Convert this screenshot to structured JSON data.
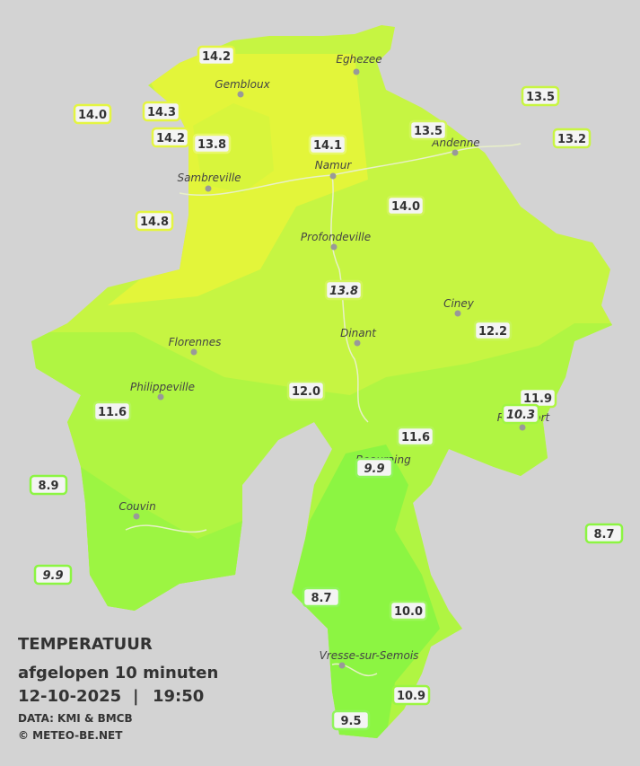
{
  "title": "TEMPERATUUR",
  "subtitle": "afgelopen 10 minuten",
  "timestamp": {
    "date": "12-10-2025",
    "separator": "|",
    "time": "19:50"
  },
  "source": "DATA: KMI & BMCB",
  "copyright": "© METEO-BE.NET",
  "towns": [
    "Eghezee",
    "Gembloux",
    "Andenne",
    "Namur",
    "Sambreville",
    "Profondeville",
    "Ciney",
    "Dinant",
    "Florennes",
    "Philippeville",
    "Rochefort",
    "Beauraing",
    "Couvin",
    "Vresse-sur-Semois"
  ],
  "stations": [
    {
      "label": "14.2",
      "italic": false,
      "border": "#e4f542"
    },
    {
      "label": "14.0",
      "italic": false,
      "border": "#e4f542"
    },
    {
      "label": "14.3",
      "italic": false,
      "border": "#e4f542"
    },
    {
      "label": "14.2",
      "italic": false,
      "border": "#e4f542"
    },
    {
      "label": "13.8",
      "italic": false,
      "border": "#e8f86a"
    },
    {
      "label": "14.1",
      "italic": false,
      "border": "#e8f86a"
    },
    {
      "label": "13.5",
      "italic": false,
      "border": "#d2f55a"
    },
    {
      "label": "13.5",
      "italic": false,
      "border": "#c8f542"
    },
    {
      "label": "13.2",
      "italic": false,
      "border": "#c8f542"
    },
    {
      "label": "14.8",
      "italic": false,
      "border": "#e4f542"
    },
    {
      "label": "14.0",
      "italic": false,
      "border": "#d2f55a"
    },
    {
      "label": "13.8",
      "italic": true,
      "border": "#d2f55a"
    },
    {
      "label": "12.2",
      "italic": false,
      "border": "#c8f55a"
    },
    {
      "label": "12.0",
      "italic": false,
      "border": "#c8f55a"
    },
    {
      "label": "11.6",
      "italic": false,
      "border": "#b5f55a"
    },
    {
      "label": "11.9",
      "italic": false,
      "border": "#b0f542"
    },
    {
      "label": "10.3",
      "italic": true,
      "border": "#a0f542"
    },
    {
      "label": "11.6",
      "italic": false,
      "border": "#b5f55a"
    },
    {
      "label": "9.9",
      "italic": true,
      "border": "#90f55a"
    },
    {
      "label": "8.9",
      "italic": false,
      "border": "#8cf542"
    },
    {
      "label": "8.7",
      "italic": false,
      "border": "#8cf542"
    },
    {
      "label": "9.9",
      "italic": true,
      "border": "#8cf542"
    },
    {
      "label": "8.7",
      "italic": false,
      "border": "#90f55a"
    },
    {
      "label": "10.0",
      "italic": false,
      "border": "#9cf55a"
    },
    {
      "label": "10.9",
      "italic": false,
      "border": "#9cf542"
    },
    {
      "label": "9.5",
      "italic": false,
      "border": "#90f55a"
    }
  ]
}
